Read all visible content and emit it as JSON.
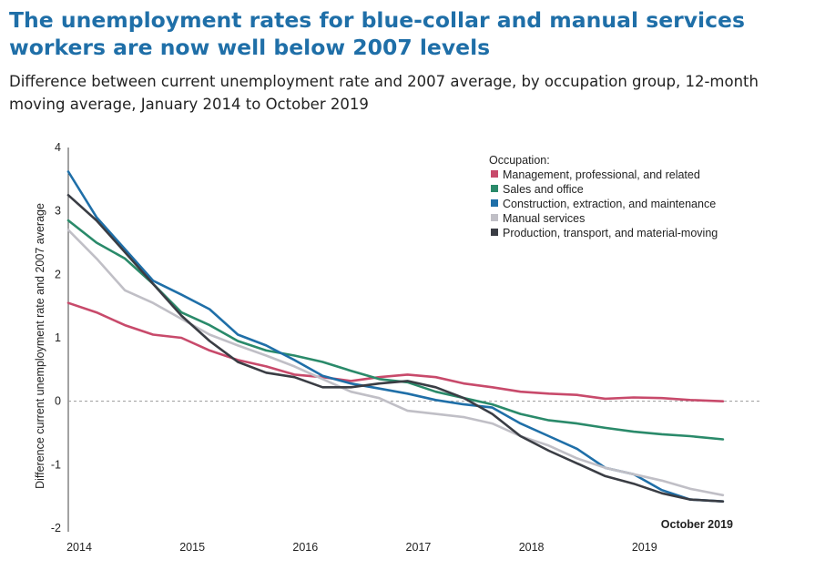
{
  "chart_data": {
    "type": "line",
    "title": "The unemployment rates for blue-collar and manual services workers are now well below 2007 levels",
    "subtitle": "Difference between current unemployment rate and 2007 average, by occupation group, 12-month moving average, January 2014 to October 2019",
    "ylabel": "Difference current unemployment rate and 2007 average",
    "xlabel": "",
    "x_ticks": [
      "2014",
      "2015",
      "2016",
      "2017",
      "2018",
      "2019"
    ],
    "y_ticks": [
      "4",
      "3",
      "2",
      "1",
      "0",
      "-1",
      "-2"
    ],
    "ylim": [
      -2,
      4
    ],
    "xlim": [
      2014.0,
      2019.92
    ],
    "zero_line": "dashed",
    "legend": {
      "title": "Occupation:",
      "position": "top-right"
    },
    "annotation": "October 2019",
    "series": [
      {
        "name": "Management, professional, and related",
        "color": "#c84a6b",
        "x": [
          2014.0,
          2014.25,
          2014.5,
          2014.75,
          2015.0,
          2015.25,
          2015.5,
          2015.75,
          2016.0,
          2016.25,
          2016.5,
          2016.75,
          2017.0,
          2017.25,
          2017.5,
          2017.75,
          2018.0,
          2018.25,
          2018.5,
          2018.75,
          2019.0,
          2019.25,
          2019.5,
          2019.79
        ],
        "values": [
          1.55,
          1.4,
          1.2,
          1.05,
          1.0,
          0.8,
          0.65,
          0.55,
          0.42,
          0.38,
          0.32,
          0.38,
          0.42,
          0.38,
          0.28,
          0.22,
          0.15,
          0.12,
          0.1,
          0.04,
          0.06,
          0.05,
          0.02,
          0.0
        ]
      },
      {
        "name": "Sales and office",
        "color": "#2a8a6a",
        "x": [
          2014.0,
          2014.25,
          2014.5,
          2014.75,
          2015.0,
          2015.25,
          2015.5,
          2015.75,
          2016.0,
          2016.25,
          2016.5,
          2016.75,
          2017.0,
          2017.25,
          2017.5,
          2017.75,
          2018.0,
          2018.25,
          2018.5,
          2018.75,
          2019.0,
          2019.25,
          2019.5,
          2019.79
        ],
        "values": [
          2.85,
          2.5,
          2.25,
          1.85,
          1.4,
          1.2,
          0.95,
          0.8,
          0.72,
          0.62,
          0.48,
          0.35,
          0.3,
          0.15,
          0.05,
          -0.05,
          -0.2,
          -0.3,
          -0.35,
          -0.42,
          -0.48,
          -0.52,
          -0.55,
          -0.6
        ]
      },
      {
        "name": "Construction, extraction, and maintenance",
        "color": "#1f6fa8",
        "x": [
          2014.0,
          2014.25,
          2014.5,
          2014.75,
          2015.0,
          2015.25,
          2015.5,
          2015.75,
          2016.0,
          2016.25,
          2016.5,
          2016.75,
          2017.0,
          2017.25,
          2017.5,
          2017.75,
          2018.0,
          2018.25,
          2018.5,
          2018.75,
          2019.0,
          2019.25,
          2019.5,
          2019.79
        ],
        "values": [
          3.62,
          2.9,
          2.4,
          1.9,
          1.68,
          1.45,
          1.05,
          0.88,
          0.65,
          0.4,
          0.28,
          0.2,
          0.12,
          0.02,
          -0.05,
          -0.1,
          -0.35,
          -0.55,
          -0.75,
          -1.05,
          -1.15,
          -1.4,
          -1.55,
          -1.58
        ]
      },
      {
        "name": "Manual services",
        "color": "#c0bfc6",
        "x": [
          2014.0,
          2014.25,
          2014.5,
          2014.75,
          2015.0,
          2015.25,
          2015.5,
          2015.75,
          2016.0,
          2016.25,
          2016.5,
          2016.75,
          2017.0,
          2017.25,
          2017.5,
          2017.75,
          2018.0,
          2018.25,
          2018.5,
          2018.75,
          2019.0,
          2019.25,
          2019.5,
          2019.79
        ],
        "values": [
          2.7,
          2.25,
          1.75,
          1.55,
          1.3,
          1.05,
          0.88,
          0.72,
          0.55,
          0.35,
          0.15,
          0.05,
          -0.15,
          -0.2,
          -0.25,
          -0.35,
          -0.55,
          -0.7,
          -0.9,
          -1.05,
          -1.15,
          -1.25,
          -1.38,
          -1.48
        ]
      },
      {
        "name": "Production, transport, and material-moving",
        "color": "#3a3d44",
        "x": [
          2014.0,
          2014.25,
          2014.5,
          2014.75,
          2015.0,
          2015.25,
          2015.5,
          2015.75,
          2016.0,
          2016.25,
          2016.5,
          2016.75,
          2017.0,
          2017.25,
          2017.5,
          2017.75,
          2018.0,
          2018.25,
          2018.5,
          2018.75,
          2019.0,
          2019.25,
          2019.5,
          2019.79
        ],
        "values": [
          3.25,
          2.85,
          2.35,
          1.85,
          1.35,
          0.95,
          0.62,
          0.45,
          0.38,
          0.22,
          0.22,
          0.28,
          0.32,
          0.22,
          0.05,
          -0.2,
          -0.55,
          -0.78,
          -0.98,
          -1.18,
          -1.3,
          -1.45,
          -1.55,
          -1.58
        ]
      }
    ]
  }
}
